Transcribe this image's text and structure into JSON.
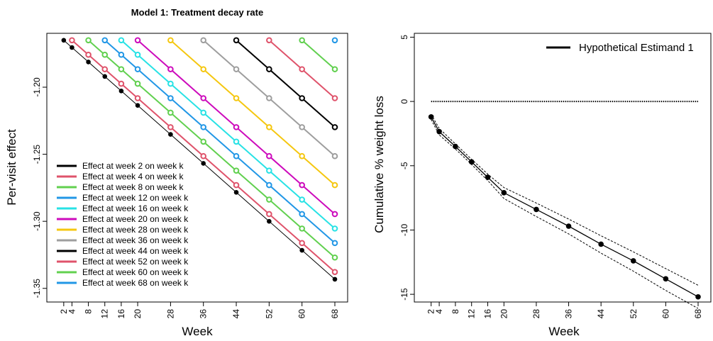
{
  "chart_data": [
    {
      "type": "line",
      "title": "Model 1: Treatment decay rate",
      "xlabel": "Week",
      "ylabel": "Per-visit effect",
      "x_ticks": [
        2,
        4,
        8,
        12,
        16,
        20,
        28,
        36,
        44,
        52,
        60,
        68
      ],
      "y_ticks": [
        -1.2,
        -1.25,
        -1.3,
        -1.35
      ],
      "y_tick_labels": [
        "-1.20",
        "-1.25",
        "-1.30",
        "-1.35"
      ],
      "xlim": [
        0.3,
        68
      ],
      "ylim": [
        -1.357,
        -1.163
      ],
      "grid": false,
      "legend_position": "bottom-left",
      "slope_per_week": -0.0027,
      "start_value": -1.165,
      "series": [
        {
          "name": "Effect at week 2 on week k",
          "start_week": 2,
          "color": "#000000",
          "end_value": -1.3477
        },
        {
          "name": "Effect at week 4 on week k",
          "start_week": 4,
          "color": "#DF536B",
          "end_value": -1.3423
        },
        {
          "name": "Effect at week 8 on week k",
          "start_week": 8,
          "color": "#61D04F",
          "end_value": -1.3315
        },
        {
          "name": "Effect at week 12 on week k",
          "start_week": 12,
          "color": "#2297E6",
          "end_value": -1.3207
        },
        {
          "name": "Effect at week 16 on week k",
          "start_week": 16,
          "color": "#28E2E5",
          "end_value": -1.3099
        },
        {
          "name": "Effect at week 20 on week k",
          "start_week": 20,
          "color": "#CD0BBC",
          "end_value": -1.2991
        },
        {
          "name": "Effect at week 28 on week k",
          "start_week": 28,
          "color": "#F5C710",
          "end_value": -1.2775
        },
        {
          "name": "Effect at week 36 on week k",
          "start_week": 36,
          "color": "#9E9E9E",
          "end_value": -1.2559
        },
        {
          "name": "Effect at week 44 on week k",
          "start_week": 44,
          "color": "#000000",
          "end_value": -1.2343
        },
        {
          "name": "Effect at week 52 on week k",
          "start_week": 52,
          "color": "#DF536B",
          "end_value": -1.2127
        },
        {
          "name": "Effect at week 60 on week k",
          "start_week": 60,
          "color": "#61D04F",
          "end_value": -1.1911
        },
        {
          "name": "Effect at week 68 on week k",
          "start_week": 68,
          "color": "#2297E6",
          "end_value": -1.165
        }
      ]
    },
    {
      "type": "line",
      "title": "",
      "xlabel": "Week",
      "ylabel": "Cumulative % weight loss",
      "x_ticks": [
        2,
        4,
        8,
        12,
        16,
        20,
        28,
        36,
        44,
        52,
        60,
        68
      ],
      "y_ticks": [
        5,
        0,
        -5,
        -10,
        -15
      ],
      "xlim": [
        0.3,
        68
      ],
      "ylim": [
        -15.6,
        5.3
      ],
      "grid": false,
      "legend_position": "top-right",
      "reference_line": {
        "y": 0,
        "style": "dotted"
      },
      "series": [
        {
          "name": "Hypothetical Estimand 1",
          "x": [
            2,
            4,
            8,
            12,
            16,
            20,
            28,
            36,
            44,
            52,
            60,
            68
          ],
          "y": [
            -1.2,
            -2.35,
            -3.5,
            -4.7,
            -5.9,
            -7.1,
            -8.4,
            -9.7,
            -11.1,
            -12.4,
            -13.8,
            -15.2
          ],
          "upper": [
            -1.0,
            -2.1,
            -3.3,
            -4.5,
            -5.65,
            -6.7,
            -7.9,
            -9.15,
            -10.45,
            -11.7,
            -13.0,
            -14.3
          ],
          "lower": [
            -1.4,
            -2.6,
            -3.7,
            -4.9,
            -6.15,
            -7.55,
            -8.95,
            -10.3,
            -11.8,
            -13.2,
            -14.7,
            -16.1
          ]
        }
      ]
    }
  ]
}
